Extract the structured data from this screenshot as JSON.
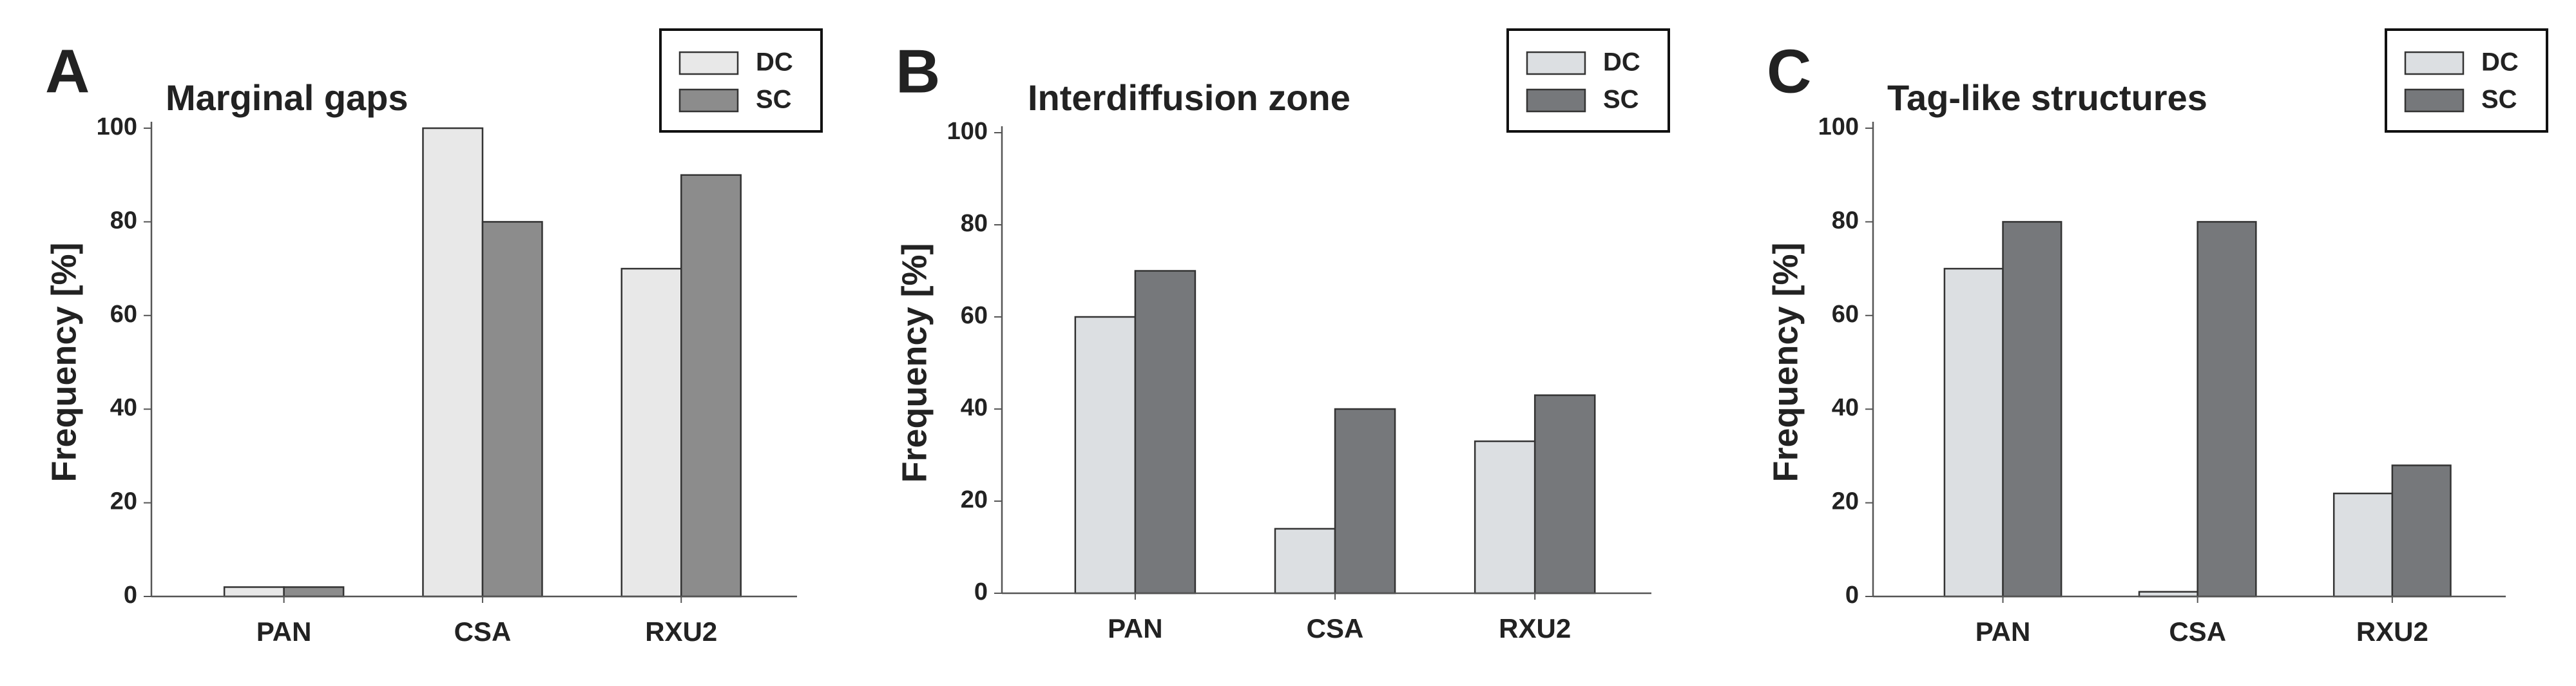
{
  "chart_data": [
    {
      "type": "bar",
      "label": "A",
      "title": "Marginal gaps",
      "y_label": "Frequency [%]",
      "categories": [
        "PAN",
        "CSA",
        "RXU2"
      ],
      "series": [
        {
          "name": "DC",
          "color": "#e8e8e8",
          "values": [
            2,
            100,
            70
          ]
        },
        {
          "name": "SC",
          "color": "#8c8c8c",
          "values": [
            2,
            80,
            90
          ]
        }
      ],
      "ylim": [
        0,
        100
      ],
      "yticks": [
        0,
        20,
        40,
        60,
        80,
        100
      ]
    },
    {
      "type": "bar",
      "label": "B",
      "title": "Interdiffusion zone",
      "y_label": "Frequency [%]",
      "categories": [
        "PAN",
        "CSA",
        "RXU2"
      ],
      "series": [
        {
          "name": "DC",
          "color": "#dcdfe2",
          "values": [
            60,
            14,
            33
          ]
        },
        {
          "name": "SC",
          "color": "#76787b",
          "values": [
            70,
            40,
            43
          ]
        }
      ],
      "ylim": [
        0,
        100
      ],
      "yticks": [
        0,
        20,
        40,
        60,
        80,
        100
      ]
    },
    {
      "type": "bar",
      "label": "C",
      "title": "Tag-like structures",
      "y_label": "Frequency [%]",
      "categories": [
        "PAN",
        "CSA",
        "RXU2"
      ],
      "series": [
        {
          "name": "DC",
          "color": "#dcdfe2",
          "values": [
            70,
            1,
            22
          ]
        },
        {
          "name": "SC",
          "color": "#76787b",
          "values": [
            80,
            80,
            28
          ]
        }
      ],
      "ylim": [
        0,
        100
      ],
      "yticks": [
        0,
        20,
        40,
        60,
        80,
        100
      ]
    }
  ]
}
